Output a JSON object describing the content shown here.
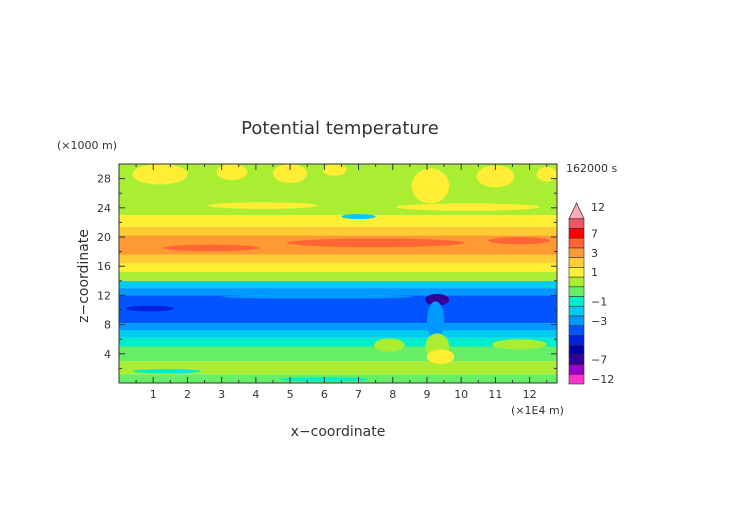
{
  "chart_data": {
    "type": "heatmap",
    "title": "Potential temperature",
    "xlabel": "x−coordinate",
    "ylabel": "z−coordinate",
    "x_unit": "(×1E4 m)",
    "y_unit": "(×1000 m)",
    "time_label": "162000 s",
    "xlim": [
      0,
      12.8
    ],
    "ylim": [
      0,
      30
    ],
    "x_ticks": [
      1,
      2,
      3,
      4,
      5,
      6,
      7,
      8,
      9,
      10,
      11,
      12
    ],
    "y_ticks": [
      4,
      8,
      12,
      16,
      20,
      24,
      28
    ],
    "colorbar": {
      "levels": [
        -12,
        -9,
        -7,
        -6,
        -5,
        -4,
        -3,
        -2,
        -1,
        -0.5,
        0.5,
        1,
        2,
        3,
        5,
        7,
        9,
        12
      ],
      "colors": [
        "#ff33cc",
        "#9900cc",
        "#330099",
        "#0000aa",
        "#0022dd",
        "#0055ff",
        "#0099ff",
        "#00ccee",
        "#00eecc",
        "#66ee66",
        "#aaee33",
        "#ffee33",
        "#ffcc33",
        "#ff9933",
        "#ff6633",
        "#ff0000",
        "#ee5566",
        "#ffaab4"
      ],
      "labeled_levels": [
        12,
        7,
        3,
        1,
        -1,
        -3,
        -7,
        -12
      ]
    },
    "bands": [
      {
        "z0": 0,
        "z1": 1.2,
        "color": "#66ee66"
      },
      {
        "z0": 1.2,
        "z1": 3.0,
        "color": "#aaee33"
      },
      {
        "z0": 3.0,
        "z1": 5.0,
        "color": "#66ee66"
      },
      {
        "z0": 5.0,
        "z1": 6.2,
        "color": "#00eecc"
      },
      {
        "z0": 6.2,
        "z1": 7.2,
        "color": "#00ccee"
      },
      {
        "z0": 7.2,
        "z1": 8.2,
        "color": "#0099ff"
      },
      {
        "z0": 8.2,
        "z1": 12.0,
        "color": "#0055ff"
      },
      {
        "z0": 12.0,
        "z1": 13.0,
        "color": "#0099ff"
      },
      {
        "z0": 13.0,
        "z1": 14.0,
        "color": "#00ccee"
      },
      {
        "z0": 14.0,
        "z1": 15.2,
        "color": "#aaee33"
      },
      {
        "z0": 15.2,
        "z1": 16.4,
        "color": "#ffee33"
      },
      {
        "z0": 16.4,
        "z1": 17.6,
        "color": "#ffcc33"
      },
      {
        "z0": 17.6,
        "z1": 20.2,
        "color": "#ff9933"
      },
      {
        "z0": 20.2,
        "z1": 21.4,
        "color": "#ffcc33"
      },
      {
        "z0": 21.4,
        "z1": 23.0,
        "color": "#ffee33"
      },
      {
        "z0": 23.0,
        "z1": 30.0,
        "color": "#aaee33"
      }
    ],
    "patches": [
      {
        "x": 1.2,
        "z": 28.6,
        "rx": 0.8,
        "rz": 1.4,
        "color": "#ffee33"
      },
      {
        "x": 3.3,
        "z": 28.9,
        "rx": 0.45,
        "rz": 1.1,
        "color": "#ffee33"
      },
      {
        "x": 5.0,
        "z": 28.7,
        "rx": 0.5,
        "rz": 1.3,
        "color": "#ffee33"
      },
      {
        "x": 6.3,
        "z": 29.2,
        "rx": 0.35,
        "rz": 0.8,
        "color": "#ffee33"
      },
      {
        "x": 9.1,
        "z": 27.0,
        "rx": 0.55,
        "rz": 2.4,
        "color": "#ffee33"
      },
      {
        "x": 11.0,
        "z": 28.3,
        "rx": 0.55,
        "rz": 1.5,
        "color": "#ffee33"
      },
      {
        "x": 12.5,
        "z": 28.6,
        "rx": 0.3,
        "rz": 1.0,
        "color": "#ffee33"
      },
      {
        "x": 4.2,
        "z": 24.3,
        "rx": 1.6,
        "rz": 0.45,
        "color": "#ffee33"
      },
      {
        "x": 10.2,
        "z": 24.1,
        "rx": 2.1,
        "rz": 0.5,
        "color": "#ffee33"
      },
      {
        "x": 7.5,
        "z": 19.2,
        "rx": 2.6,
        "rz": 0.6,
        "color": "#ff6633"
      },
      {
        "x": 2.7,
        "z": 18.5,
        "rx": 1.4,
        "rz": 0.45,
        "color": "#ff6633"
      },
      {
        "x": 11.7,
        "z": 19.5,
        "rx": 0.9,
        "rz": 0.5,
        "color": "#ff6633"
      },
      {
        "x": 0.9,
        "z": 10.2,
        "rx": 0.7,
        "rz": 0.4,
        "color": "#0022dd"
      },
      {
        "x": 9.3,
        "z": 11.4,
        "rx": 0.35,
        "rz": 0.8,
        "color": "#330099"
      },
      {
        "x": 9.25,
        "z": 8.6,
        "rx": 0.25,
        "rz": 2.6,
        "color": "#0099ff"
      },
      {
        "x": 9.3,
        "z": 5.0,
        "rx": 0.35,
        "rz": 1.8,
        "color": "#aaee33"
      },
      {
        "x": 7.9,
        "z": 5.2,
        "rx": 0.45,
        "rz": 0.9,
        "color": "#aaee33"
      },
      {
        "x": 11.7,
        "z": 5.3,
        "rx": 0.8,
        "rz": 0.7,
        "color": "#aaee33"
      },
      {
        "x": 9.4,
        "z": 3.6,
        "rx": 0.4,
        "rz": 1.0,
        "color": "#ffee33"
      },
      {
        "x": 10.7,
        "z": 2.2,
        "rx": 1.4,
        "rz": 0.5,
        "color": "#aaee33"
      },
      {
        "x": 1.4,
        "z": 1.6,
        "rx": 1.0,
        "rz": 0.3,
        "color": "#00eecc"
      },
      {
        "x": 6.0,
        "z": 0.5,
        "rx": 1.3,
        "rz": 0.3,
        "color": "#00eecc"
      },
      {
        "x": 7.0,
        "z": 22.8,
        "rx": 0.5,
        "rz": 0.35,
        "color": "#00ccee"
      },
      {
        "x": 5.8,
        "z": 11.8,
        "rx": 2.8,
        "rz": 0.25,
        "color": "#0099ff"
      }
    ]
  }
}
